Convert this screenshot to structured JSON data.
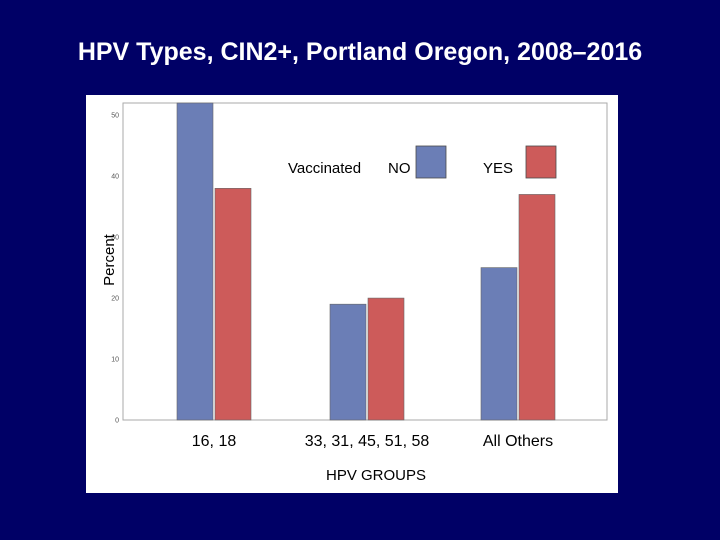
{
  "slide": {
    "title": "HPV Types, CIN2+, Portland Oregon, 2008–2016"
  },
  "chart_data": {
    "type": "bar",
    "title": "HPV Types, CIN2+, Portland Oregon, 2008–2016",
    "xlabel": "HPV GROUPS",
    "ylabel": "Percent",
    "categories": [
      "16, 18",
      "33, 31, 45, 51, 58",
      "All Others"
    ],
    "series": [
      {
        "name": "NO",
        "color": "#6b7eb6",
        "values": [
          52,
          19,
          25
        ]
      },
      {
        "name": "YES",
        "color": "#cd5b5a",
        "values": [
          38,
          20,
          37
        ]
      }
    ],
    "legend_title": "Vaccinated",
    "yticks": [
      "0",
      "10",
      "20",
      "30",
      "40",
      "50"
    ],
    "ylim": [
      0,
      52
    ],
    "grid": false,
    "legend_position": "top-right"
  }
}
